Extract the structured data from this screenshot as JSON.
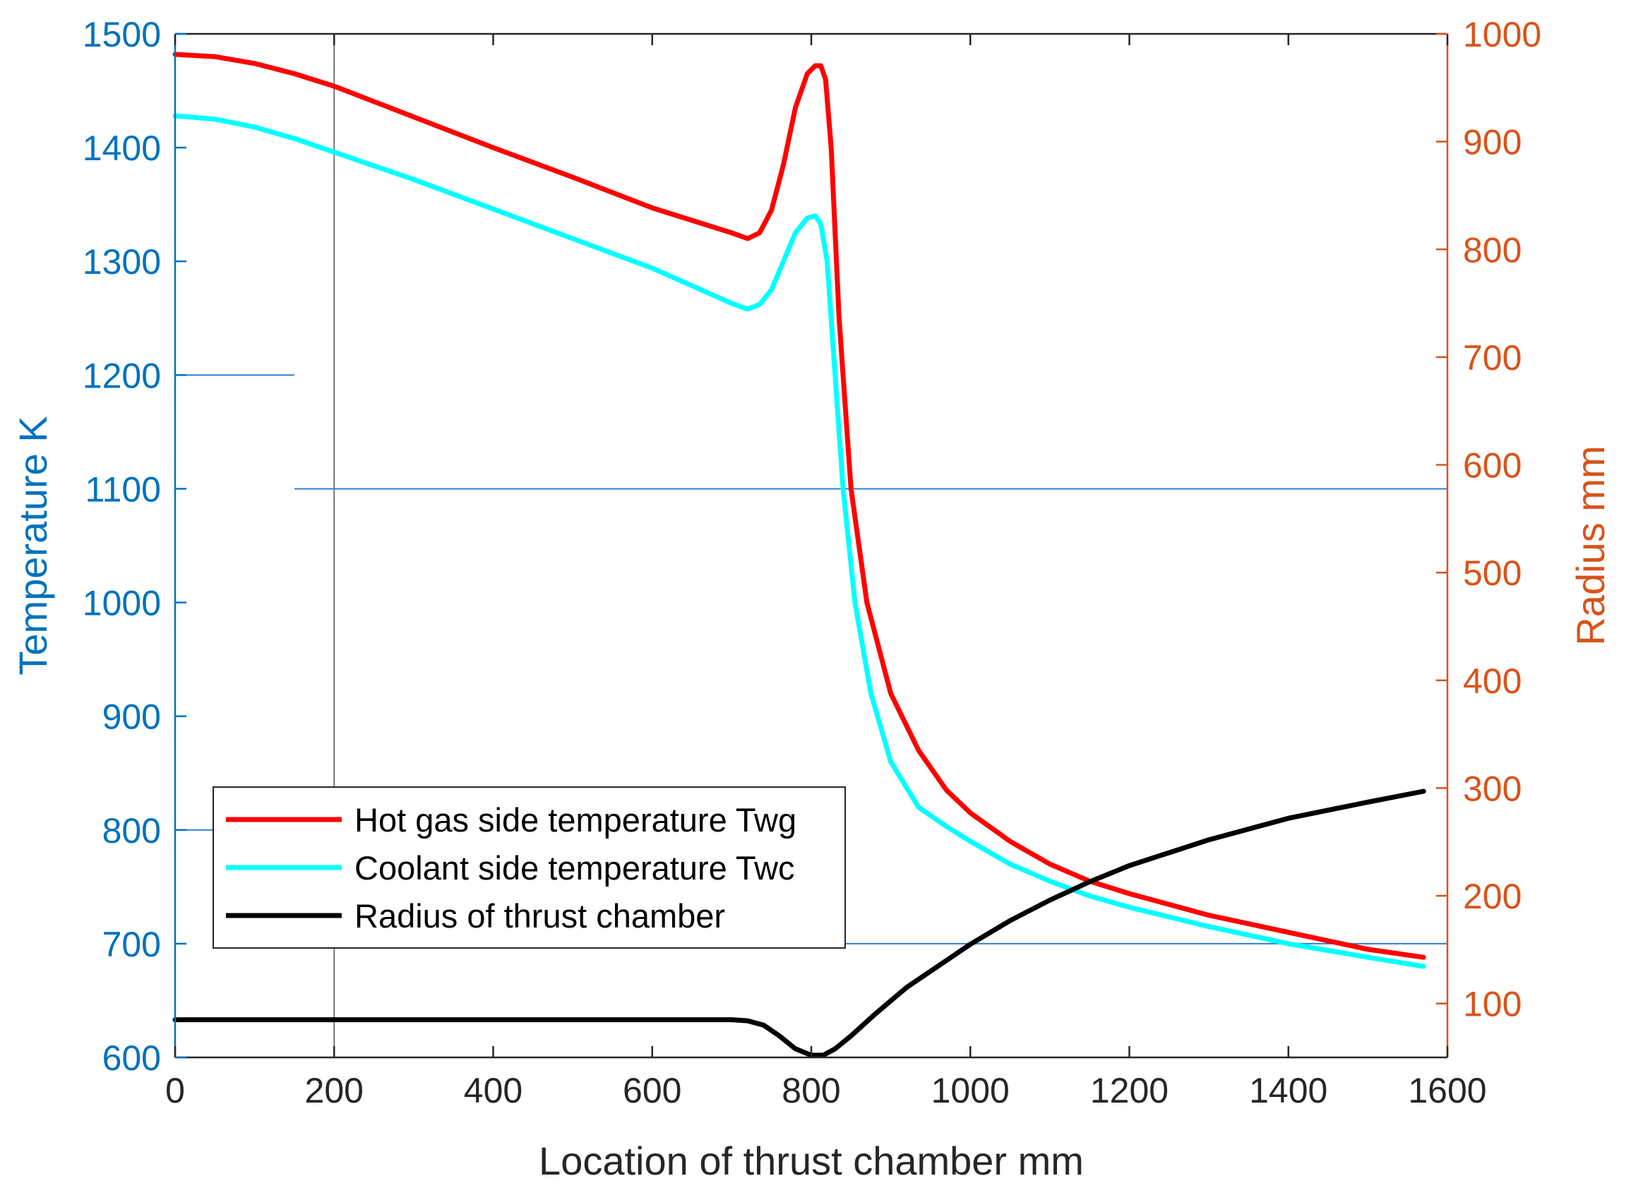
{
  "chart_data": {
    "type": "line",
    "title": "",
    "xlabel": "Location of thrust chamber mm",
    "ylabel_left": "Temperature K",
    "ylabel_right": "Radius mm",
    "xlim": [
      0,
      1600
    ],
    "ylim_left": [
      600,
      1500
    ],
    "ylim_right": [
      50,
      1000
    ],
    "x_ticks": [
      0,
      200,
      400,
      600,
      800,
      1000,
      1200,
      1400,
      1600
    ],
    "y_ticks_left": [
      600,
      700,
      800,
      900,
      1000,
      1100,
      1200,
      1300,
      1400,
      1500
    ],
    "y_ticks_right": [
      100,
      200,
      300,
      400,
      500,
      600,
      700,
      800,
      900,
      1000
    ],
    "x_tick_labels": [
      "0",
      "200",
      "400",
      "600",
      "800",
      "1000",
      "1200",
      "1400",
      "1600"
    ],
    "y_tick_labels_left": [
      "600",
      "700",
      "800",
      "900",
      "1000",
      "1100",
      "1200",
      "1300",
      "1400",
      "1500"
    ],
    "y_tick_labels_right": [
      "100",
      "200",
      "300",
      "400",
      "500",
      "600",
      "700",
      "800",
      "900",
      "1000"
    ],
    "colors": {
      "left_axis": "#0072BD",
      "right_axis": "#D95319",
      "x_axis": "#262626",
      "gridline": "#2F7FD0"
    },
    "reference_lines": {
      "vertical": [
        200
      ],
      "horizontal": [
        {
          "y": 1200,
          "x_range": [
            0,
            150
          ]
        },
        {
          "y": 1100,
          "x_range": [
            150,
            1600
          ]
        },
        {
          "y": 800,
          "x_range": [
            0,
            60
          ]
        },
        {
          "y": 700,
          "x_range": [
            835,
            1600
          ]
        }
      ]
    },
    "legend": {
      "location": "lower-left",
      "entries": [
        "Hot gas side temperature Twg",
        "Coolant side temperature Twc",
        "Radius of thrust chamber"
      ]
    },
    "series": [
      {
        "name": "Hot gas side temperature Twg",
        "axis": "left",
        "color": "#FF0000",
        "x": [
          0,
          50,
          100,
          150,
          200,
          300,
          400,
          500,
          600,
          700,
          720,
          735,
          750,
          765,
          780,
          795,
          805,
          812,
          818,
          825,
          835,
          850,
          870,
          900,
          935,
          970,
          1000,
          1050,
          1100,
          1150,
          1200,
          1300,
          1400,
          1500,
          1570
        ],
        "values": [
          1482,
          1480,
          1474,
          1465,
          1454,
          1427,
          1400,
          1374,
          1347,
          1325,
          1320,
          1325,
          1345,
          1385,
          1435,
          1465,
          1472,
          1472,
          1460,
          1400,
          1250,
          1100,
          1000,
          920,
          870,
          835,
          815,
          790,
          770,
          755,
          744,
          725,
          710,
          695,
          688
        ]
      },
      {
        "name": "Coolant side temperature Twc",
        "axis": "left",
        "color": "#00FFFF",
        "x": [
          0,
          50,
          100,
          150,
          200,
          300,
          400,
          500,
          600,
          700,
          720,
          735,
          750,
          765,
          780,
          795,
          805,
          812,
          820,
          830,
          840,
          855,
          875,
          900,
          935,
          970,
          1000,
          1050,
          1100,
          1150,
          1200,
          1300,
          1400,
          1500,
          1570
        ],
        "values": [
          1428,
          1425,
          1418,
          1408,
          1396,
          1372,
          1346,
          1320,
          1294,
          1263,
          1258,
          1262,
          1275,
          1300,
          1325,
          1338,
          1340,
          1333,
          1300,
          1200,
          1100,
          1000,
          920,
          860,
          820,
          803,
          790,
          770,
          755,
          742,
          732,
          715,
          700,
          688,
          680
        ]
      },
      {
        "name": "Radius of thrust chamber",
        "axis": "right",
        "color": "#000000",
        "x": [
          0,
          100,
          200,
          300,
          400,
          500,
          600,
          700,
          720,
          740,
          760,
          780,
          800,
          815,
          830,
          850,
          880,
          920,
          970,
          1000,
          1050,
          1100,
          1150,
          1200,
          1300,
          1400,
          1500,
          1570
        ],
        "values": [
          85,
          85,
          85,
          85,
          85,
          85,
          85,
          85,
          84,
          80,
          70,
          58,
          52,
          52,
          58,
          70,
          90,
          115,
          140,
          155,
          177,
          196,
          213,
          228,
          252,
          272,
          287,
          297
        ]
      }
    ]
  }
}
